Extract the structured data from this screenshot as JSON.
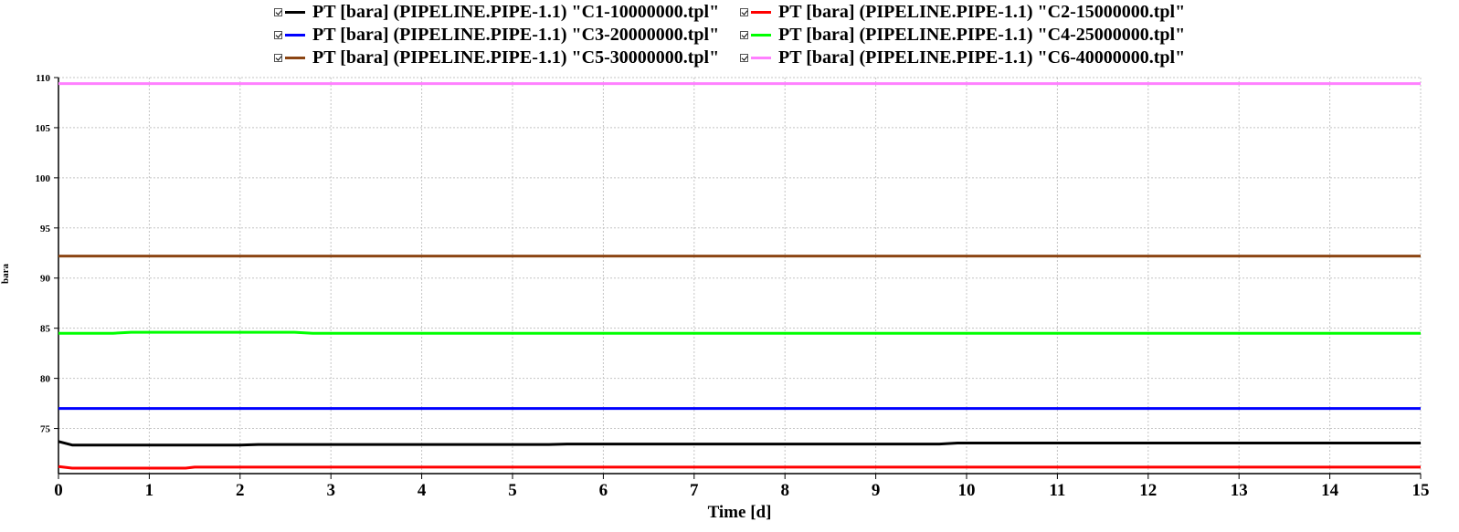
{
  "chart_data": {
    "type": "line",
    "title": "",
    "xlabel": "Time [d]",
    "ylabel": "bara",
    "xlim": [
      0,
      15
    ],
    "ylim": [
      70.5,
      110
    ],
    "xticks": [
      "0",
      "1",
      "2",
      "3",
      "4",
      "5",
      "6",
      "7",
      "8",
      "9",
      "10",
      "11",
      "12",
      "13",
      "14",
      "15"
    ],
    "yticks": [
      "75",
      "80",
      "85",
      "90",
      "95",
      "100",
      "105",
      "110"
    ],
    "grid": true,
    "legend_placement": "top-center",
    "series": [
      {
        "name": "PT [bara] (PIPELINE.PIPE-1.1) \"C1-10000000.tpl\"",
        "color": "#000000",
        "x": [
          0,
          0.15,
          2,
          2.2,
          5.4,
          5.6,
          9.7,
          9.9,
          15
        ],
        "y": [
          73.7,
          73.35,
          73.35,
          73.4,
          73.4,
          73.45,
          73.45,
          73.55,
          73.55
        ]
      },
      {
        "name": "PT [bara] (PIPELINE.PIPE-1.1) \"C2-15000000.tpl\"",
        "color": "#ff0000",
        "x": [
          0,
          0.15,
          1.4,
          1.5,
          15
        ],
        "y": [
          71.2,
          71.05,
          71.05,
          71.15,
          71.15
        ]
      },
      {
        "name": "PT [bara] (PIPELINE.PIPE-1.1) \"C3-20000000.tpl\"",
        "color": "#0000ff",
        "x": [
          0,
          15
        ],
        "y": [
          77.0,
          77.0
        ]
      },
      {
        "name": "PT [bara] (PIPELINE.PIPE-1.1) \"C4-25000000.tpl\"",
        "color": "#00ff00",
        "x": [
          0,
          0.6,
          0.8,
          2.6,
          2.8,
          15
        ],
        "y": [
          84.5,
          84.5,
          84.6,
          84.6,
          84.5,
          84.5
        ]
      },
      {
        "name": "PT [bara] (PIPELINE.PIPE-1.1) \"C5-30000000.tpl\"",
        "color": "#8b4513",
        "x": [
          0,
          15
        ],
        "y": [
          92.2,
          92.2
        ]
      },
      {
        "name": "PT [bara] (PIPELINE.PIPE-1.1) \"C6-40000000.tpl\"",
        "color": "#ff80ff",
        "x": [
          0,
          15
        ],
        "y": [
          109.4,
          109.4
        ]
      }
    ]
  }
}
